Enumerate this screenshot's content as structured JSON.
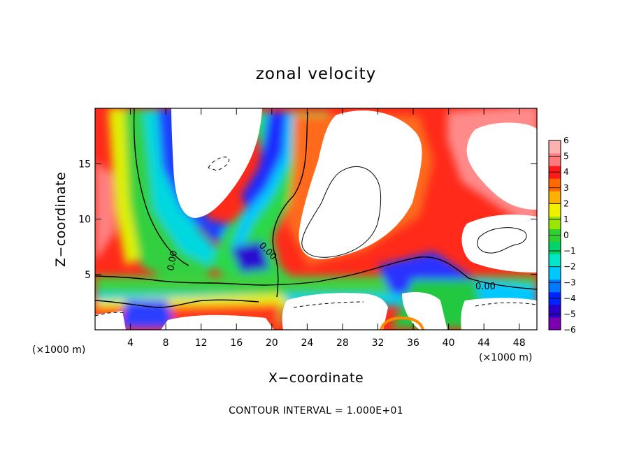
{
  "chart_data": {
    "type": "heatmap",
    "title": "zonal velocity",
    "xlabel": "X−coordinate",
    "ylabel": "Z−coordinate",
    "x_unit_left": "(×1000 m)",
    "x_unit_right": "(×1000 m)",
    "footer": "CONTOUR INTERVAL = 1.000E+01",
    "xlim": [
      0,
      50
    ],
    "ylim": [
      0,
      20
    ],
    "x_ticks": [
      4,
      8,
      12,
      16,
      20,
      24,
      28,
      32,
      36,
      40,
      44,
      48
    ],
    "y_ticks": [
      5,
      10,
      15
    ],
    "colorbar": {
      "range": [
        -6,
        6
      ],
      "ticks": [
        6,
        5,
        4,
        3,
        2,
        1,
        0,
        -1,
        -2,
        -3,
        -4,
        -5,
        -6
      ],
      "colors": [
        "#7a00b0",
        "#2a00c8",
        "#0024ff",
        "#0078ff",
        "#00c8ff",
        "#00e6c8",
        "#00d46a",
        "#30d030",
        "#9ae600",
        "#f0f000",
        "#ffb000",
        "#ff6a00",
        "#ff1a1a",
        "#ff7a7a",
        "#ffb0b0"
      ]
    },
    "contour_labels": [
      "0.00",
      "0.00",
      "0.00"
    ]
  }
}
